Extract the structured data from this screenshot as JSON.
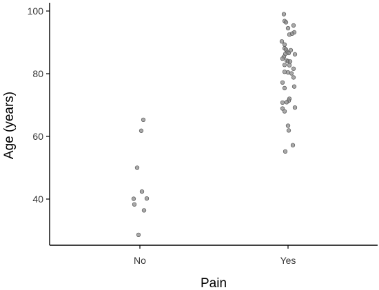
{
  "chart_data": {
    "type": "scatter",
    "xlabel": "Pain",
    "ylabel": "Age (years)",
    "categories": [
      "No",
      "Yes"
    ],
    "yticks": [
      40,
      60,
      80,
      100
    ],
    "ylim": [
      25,
      102
    ],
    "grid": false,
    "point_color": "#8c8c8c",
    "series": [
      {
        "category": "No",
        "values": [
          65.3,
          61.8,
          50.0,
          42.4,
          40.2,
          40.1,
          38.3,
          36.4,
          28.6
        ],
        "jitter": [
          0.05,
          0.02,
          -0.04,
          0.03,
          0.1,
          -0.09,
          -0.08,
          0.06,
          -0.02
        ]
      },
      {
        "category": "Yes",
        "values": [
          99.0,
          96.8,
          96.4,
          94.5,
          95.4,
          93.2,
          92.5,
          92.8,
          90.3,
          89.3,
          88.1,
          87.7,
          87.5,
          86.9,
          86.6,
          86.3,
          86.2,
          85.4,
          84.8,
          84.2,
          84.0,
          83.9,
          82.8,
          82.7,
          81.6,
          80.6,
          80.4,
          80.1,
          78.8,
          77.2,
          75.9,
          75.4,
          72.0,
          71.4,
          70.8,
          70.9,
          69.2,
          68.9,
          68.0,
          63.4,
          61.9,
          57.2,
          55.2
        ],
        "jitter": [
          -0.06,
          -0.05,
          -0.03,
          0.0,
          0.08,
          0.09,
          0.02,
          0.06,
          -0.09,
          -0.05,
          -0.05,
          -0.03,
          0.04,
          -0.01,
          0.01,
          -0.04,
          0.1,
          -0.06,
          -0.08,
          -0.02,
          0.0,
          0.03,
          -0.05,
          0.02,
          0.08,
          -0.05,
          0.0,
          0.05,
          0.08,
          -0.08,
          0.09,
          -0.05,
          0.02,
          0.01,
          -0.08,
          -0.02,
          0.1,
          -0.08,
          -0.05,
          0.0,
          0.01,
          0.07,
          -0.04
        ]
      }
    ]
  }
}
